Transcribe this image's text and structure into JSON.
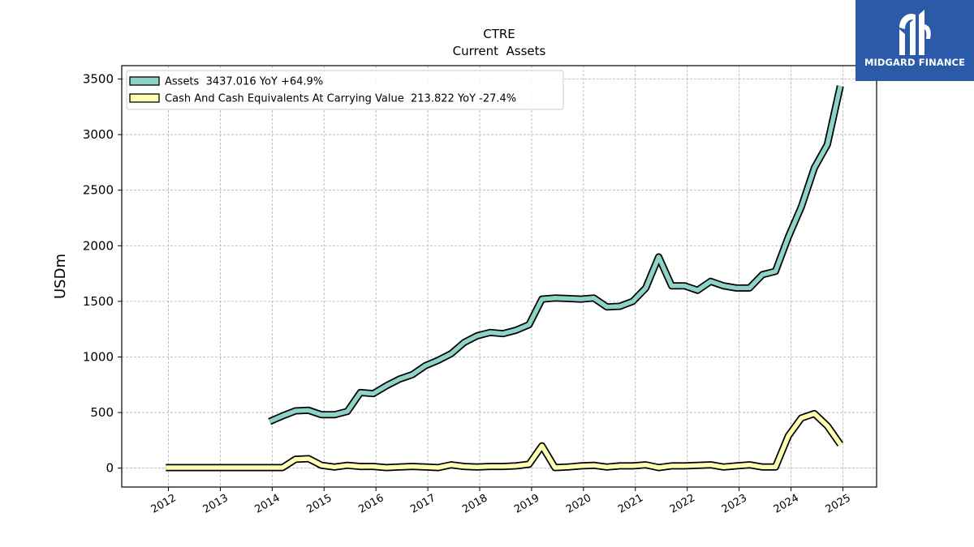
{
  "chart_data": {
    "type": "line",
    "title": "CTRE",
    "subtitle": "Current  Assets",
    "ylabel": "USDm",
    "xlabel": "",
    "ylim": [
      -170,
      3620
    ],
    "xlim": [
      2011.1,
      2025.65
    ],
    "yticks": [
      0,
      500,
      1000,
      1500,
      2000,
      2500,
      3000,
      3500
    ],
    "xticks": [
      "2012",
      "2013",
      "2014",
      "2015",
      "2016",
      "2017",
      "2018",
      "2019",
      "2020",
      "2021",
      "2022",
      "2023",
      "2024",
      "2025"
    ],
    "grid": true,
    "legend_position": "top-left",
    "series": [
      {
        "name": "Assets  3437.016 YoY +64.9%",
        "color": "#8dd3c7",
        "x": [
          2013.95,
          2014.2,
          2014.45,
          2014.7,
          2014.95,
          2015.2,
          2015.45,
          2015.7,
          2015.95,
          2016.2,
          2016.45,
          2016.7,
          2016.95,
          2017.2,
          2017.45,
          2017.7,
          2017.95,
          2018.2,
          2018.45,
          2018.7,
          2018.95,
          2019.2,
          2019.45,
          2019.7,
          2019.95,
          2020.2,
          2020.45,
          2020.7,
          2020.95,
          2021.2,
          2021.45,
          2021.7,
          2021.95,
          2022.2,
          2022.45,
          2022.7,
          2022.95,
          2023.2,
          2023.45,
          2023.7,
          2023.95,
          2024.2,
          2024.45,
          2024.7,
          2024.95
        ],
        "y": [
          420,
          470,
          515,
          520,
          480,
          480,
          510,
          680,
          670,
          740,
          800,
          840,
          920,
          970,
          1030,
          1130,
          1190,
          1220,
          1210,
          1240,
          1290,
          1520,
          1530,
          1525,
          1520,
          1530,
          1450,
          1455,
          1500,
          1620,
          1900,
          1640,
          1640,
          1600,
          1680,
          1640,
          1620,
          1620,
          1740,
          1770,
          2080,
          2350,
          2700,
          2910,
          3437
        ]
      },
      {
        "name": "Cash And Cash Equivalents At Carrying Value  213.822 YoY -27.4%",
        "color": "#ffffb3",
        "x": [
          2011.95,
          2012.2,
          2012.45,
          2012.7,
          2012.95,
          2013.2,
          2013.45,
          2013.7,
          2013.95,
          2014.2,
          2014.45,
          2014.7,
          2014.95,
          2015.2,
          2015.45,
          2015.7,
          2015.95,
          2016.2,
          2016.45,
          2016.7,
          2016.95,
          2017.2,
          2017.45,
          2017.7,
          2017.95,
          2018.2,
          2018.45,
          2018.7,
          2018.95,
          2019.2,
          2019.45,
          2019.7,
          2019.95,
          2020.2,
          2020.45,
          2020.7,
          2020.95,
          2021.2,
          2021.45,
          2021.7,
          2021.95,
          2022.2,
          2022.45,
          2022.7,
          2022.95,
          2023.2,
          2023.45,
          2023.7,
          2023.95,
          2024.2,
          2024.45,
          2024.7,
          2024.95
        ],
        "y": [
          5,
          5,
          5,
          5,
          5,
          5,
          5,
          5,
          5,
          5,
          80,
          85,
          25,
          10,
          25,
          15,
          15,
          5,
          10,
          15,
          10,
          5,
          30,
          15,
          10,
          15,
          15,
          20,
          35,
          200,
          5,
          10,
          20,
          25,
          10,
          20,
          20,
          30,
          5,
          20,
          20,
          25,
          30,
          10,
          20,
          30,
          10,
          10,
          290,
          450,
          490,
          380,
          214
        ]
      }
    ]
  },
  "brand": {
    "name": "MIDGARD FINANCE",
    "background": "#2a5aa8"
  }
}
